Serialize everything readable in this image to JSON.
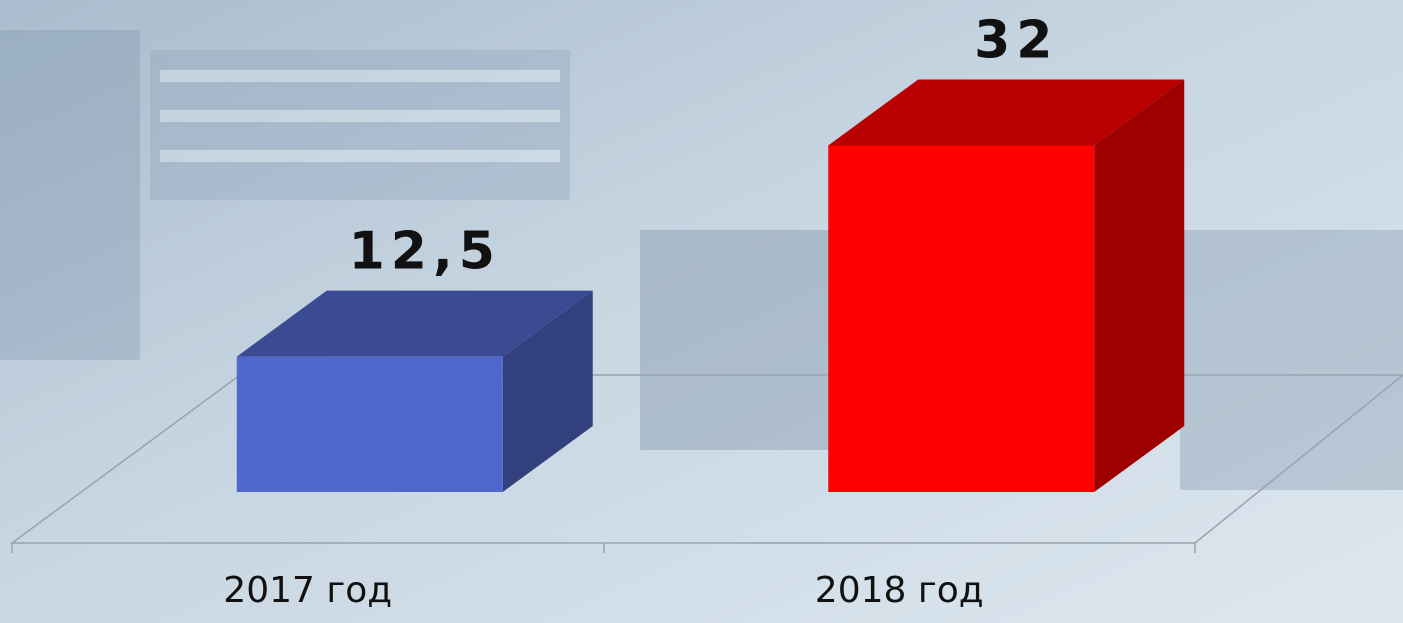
{
  "chart_data": {
    "type": "bar3d",
    "categories": [
      "2017 год",
      "2018 год"
    ],
    "series": [
      {
        "values": [
          12.5,
          32
        ],
        "value_labels": [
          "12,5",
          "32"
        ],
        "colors": [
          "#5068cc",
          "#ff0000"
        ]
      }
    ]
  }
}
